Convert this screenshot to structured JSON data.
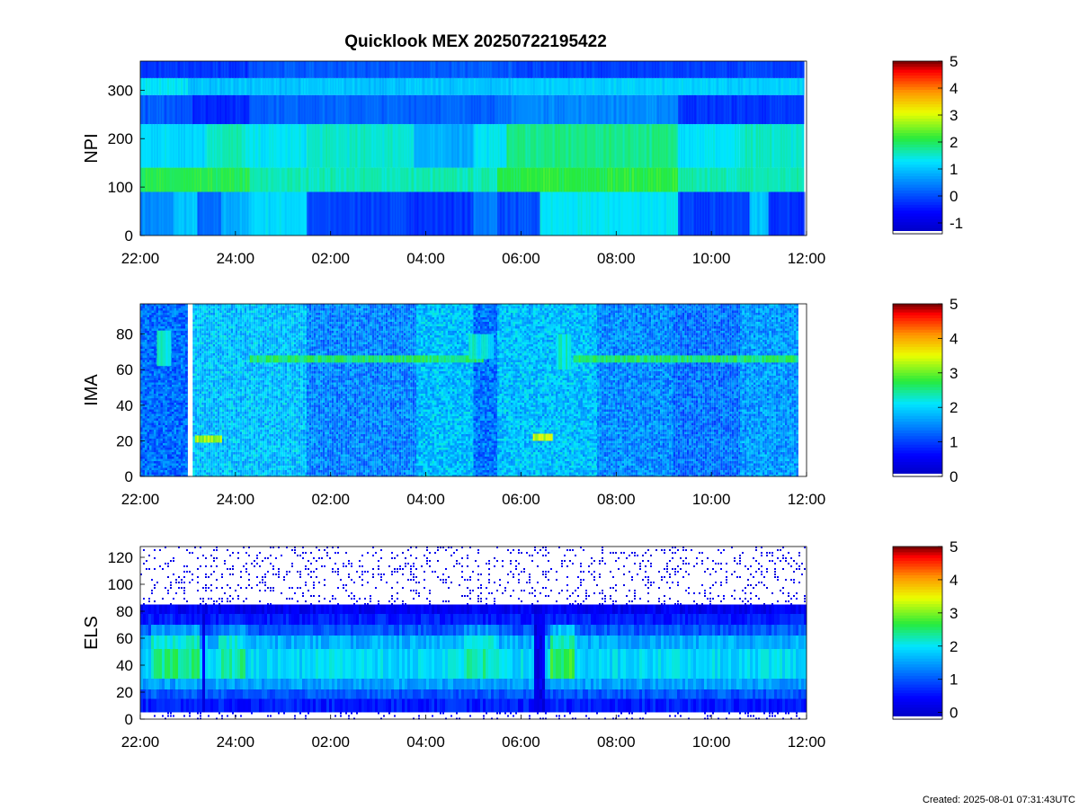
{
  "figure": {
    "title": "Quicklook MEX 20250722195422",
    "footer": "Created: 2025-08-01 07:31:43UTC"
  },
  "chart_data": [
    {
      "type": "heatmap",
      "ylabel": "NPI",
      "xlabel": "",
      "xlim": [
        -2,
        12
      ],
      "x_tick_values": [
        -2,
        0,
        2,
        4,
        6,
        8,
        10,
        12
      ],
      "x_tick_labels": [
        "22:00",
        "24:00",
        "02:00",
        "04:00",
        "06:00",
        "08:00",
        "10:00",
        "12:00"
      ],
      "ylim": [
        0,
        360
      ],
      "y_ticks": [
        0,
        100,
        200,
        300
      ],
      "colorbar": {
        "min": -1.4,
        "max": 5,
        "ticks": [
          -1,
          0,
          1,
          2,
          3,
          4,
          5
        ]
      },
      "data_end": 11.95,
      "bands": [
        {
          "y0": 0,
          "y1": 90,
          "segments": [
            {
              "x0": -2,
              "x1": -1.3,
              "value": 0.5
            },
            {
              "x0": -1.3,
              "x1": -0.8,
              "value": 1.0
            },
            {
              "x0": -0.8,
              "x1": -0.3,
              "value": 0.2
            },
            {
              "x0": -0.3,
              "x1": 0.3,
              "value": 0.8
            },
            {
              "x0": 0.3,
              "x1": 1.5,
              "value": 1.2
            },
            {
              "x0": 1.5,
              "x1": 3.75,
              "value": -0.1
            },
            {
              "x0": 3.75,
              "x1": 5.0,
              "value": -0.2
            },
            {
              "x0": 5.0,
              "x1": 5.5,
              "value": 0.4
            },
            {
              "x0": 5.5,
              "x1": 6.4,
              "value": 0.0
            },
            {
              "x0": 6.4,
              "x1": 9.3,
              "value": 1.3
            },
            {
              "x0": 9.3,
              "x1": 10.8,
              "value": -0.1
            },
            {
              "x0": 10.8,
              "x1": 11.2,
              "value": 1.0
            },
            {
              "x0": 11.2,
              "x1": 11.95,
              "value": -0.2
            }
          ]
        },
        {
          "y0": 90,
          "y1": 140,
          "segments": [
            {
              "x0": -2,
              "x1": 0.3,
              "value": 2.0
            },
            {
              "x0": 0.3,
              "x1": 5.5,
              "value": 1.6
            },
            {
              "x0": 5.5,
              "x1": 9.3,
              "value": 2.1
            },
            {
              "x0": 9.3,
              "x1": 11.95,
              "value": 1.6
            }
          ]
        },
        {
          "y0": 140,
          "y1": 230,
          "segments": [
            {
              "x0": -2,
              "x1": -0.6,
              "value": 1.2
            },
            {
              "x0": -0.6,
              "x1": 0.2,
              "value": 1.6
            },
            {
              "x0": 0.2,
              "x1": 1.5,
              "value": 1.3
            },
            {
              "x0": 1.5,
              "x1": 3.75,
              "value": 1.5
            },
            {
              "x0": 3.75,
              "x1": 5.0,
              "value": 0.8
            },
            {
              "x0": 5.0,
              "x1": 5.7,
              "value": 1.3
            },
            {
              "x0": 5.7,
              "x1": 9.3,
              "value": 1.8
            },
            {
              "x0": 9.3,
              "x1": 10.6,
              "value": 1.3
            },
            {
              "x0": 10.6,
              "x1": 11.95,
              "value": 1.5
            }
          ]
        },
        {
          "y0": 230,
          "y1": 290,
          "segments": [
            {
              "x0": -2,
              "x1": -0.9,
              "value": 0.1
            },
            {
              "x0": -0.9,
              "x1": 0.3,
              "value": -0.3
            },
            {
              "x0": 0.3,
              "x1": 5.8,
              "value": 0.2
            },
            {
              "x0": 5.8,
              "x1": 9.3,
              "value": 0.5
            },
            {
              "x0": 9.3,
              "x1": 11.95,
              "value": -0.2
            }
          ]
        },
        {
          "y0": 290,
          "y1": 325,
          "segments": [
            {
              "x0": -2,
              "x1": -1.0,
              "value": 1.3
            },
            {
              "x0": -1.0,
              "x1": 5.8,
              "value": 1.0
            },
            {
              "x0": 5.8,
              "x1": 11.95,
              "value": 1.1
            }
          ]
        },
        {
          "y0": 325,
          "y1": 360,
          "segments": [
            {
              "x0": -2,
              "x1": 0.3,
              "value": -0.2
            },
            {
              "x0": 0.3,
              "x1": 5.8,
              "value": 0.1
            },
            {
              "x0": 5.8,
              "x1": 11.95,
              "value": -0.1
            }
          ]
        }
      ]
    },
    {
      "type": "heatmap",
      "ylabel": "IMA",
      "xlabel": "",
      "xlim": [
        -2,
        12
      ],
      "x_tick_values": [
        -2,
        0,
        2,
        4,
        6,
        8,
        10,
        12
      ],
      "x_tick_labels": [
        "22:00",
        "24:00",
        "02:00",
        "04:00",
        "06:00",
        "08:00",
        "10:00",
        "12:00"
      ],
      "ylim": [
        0,
        97
      ],
      "y_ticks": [
        0,
        20,
        40,
        60,
        80
      ],
      "colorbar": {
        "min": 0,
        "max": 5,
        "ticks": [
          0,
          1,
          2,
          3,
          4,
          5
        ]
      },
      "data_end": 11.8,
      "gap": [
        -1.0,
        -0.9
      ],
      "background_segments": [
        {
          "x0": -2,
          "x1": -1.0,
          "value": 1.3
        },
        {
          "x0": -0.9,
          "x1": 1.5,
          "value": 1.85
        },
        {
          "x0": 1.5,
          "x1": 3.8,
          "value": 1.45
        },
        {
          "x0": 3.8,
          "x1": 5.0,
          "value": 1.85
        },
        {
          "x0": 5.0,
          "x1": 5.5,
          "value": 1.35
        },
        {
          "x0": 5.5,
          "x1": 7.6,
          "value": 1.85
        },
        {
          "x0": 7.6,
          "x1": 9.2,
          "value": 1.5
        },
        {
          "x0": 9.2,
          "x1": 10.6,
          "value": 1.35
        },
        {
          "x0": 10.6,
          "x1": 11.8,
          "value": 1.6
        }
      ],
      "traces": [
        {
          "x0": 0.3,
          "x1": 5.2,
          "y0": 64,
          "y1": 68,
          "value": 2.6
        },
        {
          "x0": 7.1,
          "x1": 11.8,
          "y0": 64,
          "y1": 68,
          "value": 2.6
        },
        {
          "x0": -0.85,
          "x1": -0.3,
          "y0": 19,
          "y1": 23,
          "value": 3.2
        },
        {
          "x0": 6.25,
          "x1": 6.65,
          "y0": 20,
          "y1": 24,
          "value": 3.3
        },
        {
          "x0": -1.65,
          "x1": -1.35,
          "y0": 62,
          "y1": 82,
          "value": 2.2
        },
        {
          "x0": 4.9,
          "x1": 5.4,
          "y0": 66,
          "y1": 80,
          "value": 2.2
        },
        {
          "x0": 6.75,
          "x1": 7.05,
          "y0": 60,
          "y1": 80,
          "value": 2.3
        }
      ]
    },
    {
      "type": "heatmap",
      "ylabel": "ELS",
      "xlabel": "",
      "xlim": [
        -2,
        12
      ],
      "x_tick_values": [
        -2,
        0,
        2,
        4,
        6,
        8,
        10,
        12
      ],
      "x_tick_labels": [
        "22:00",
        "24:00",
        "02:00",
        "04:00",
        "06:00",
        "08:00",
        "10:00",
        "12:00"
      ],
      "ylim": [
        0,
        128
      ],
      "y_ticks": [
        0,
        20,
        40,
        60,
        80,
        100,
        120
      ],
      "colorbar": {
        "min": -0.2,
        "max": 5,
        "ticks": [
          0,
          1,
          2,
          3,
          4,
          5
        ]
      },
      "data_end": 12,
      "profile": [
        {
          "y0": 0,
          "y1": 5,
          "value": 0.1,
          "sparse": true
        },
        {
          "y0": 5,
          "y1": 15,
          "value": 0.6
        },
        {
          "y0": 15,
          "y1": 22,
          "value": 1.0
        },
        {
          "y0": 22,
          "y1": 30,
          "value": 1.5
        },
        {
          "y0": 30,
          "y1": 52,
          "value": 1.9
        },
        {
          "y0": 52,
          "y1": 62,
          "value": 1.6
        },
        {
          "y0": 62,
          "y1": 70,
          "value": 1.0
        },
        {
          "y0": 70,
          "y1": 78,
          "value": 0.6
        },
        {
          "y0": 78,
          "y1": 85,
          "value": 0.3
        },
        {
          "y0": 85,
          "y1": 128,
          "value": 0.05,
          "sparse": true
        }
      ],
      "bright_intervals": [
        {
          "x0": -1.8,
          "x1": -0.8,
          "value": 2.4
        },
        {
          "x0": -0.4,
          "x1": 0.2,
          "value": 2.3
        },
        {
          "x0": 4.8,
          "x1": 5.5,
          "value": 2.3
        },
        {
          "x0": 6.6,
          "x1": 7.1,
          "value": 2.6
        }
      ],
      "dark_intervals": [
        {
          "x0": -0.75,
          "x1": -0.65,
          "value": 0.2
        },
        {
          "x0": 6.25,
          "x1": 6.45,
          "value": 0.2
        }
      ]
    }
  ]
}
